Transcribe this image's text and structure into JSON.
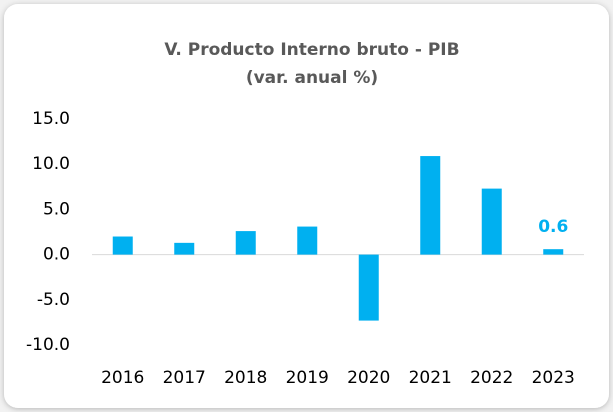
{
  "chart_data": {
    "type": "bar",
    "title": "V. Producto Interno bruto - PIB",
    "subtitle": "(var. anual %)",
    "categories": [
      "2016",
      "2017",
      "2018",
      "2019",
      "2020",
      "2021",
      "2022",
      "2023"
    ],
    "values": [
      2.0,
      1.3,
      2.6,
      3.1,
      -7.3,
      10.9,
      7.3,
      0.6
    ],
    "value_labels": [
      null,
      null,
      null,
      null,
      null,
      null,
      null,
      "0.6"
    ],
    "color": "#00b0f0",
    "ylim": [
      -10,
      15
    ],
    "yticks": [
      {
        "value": -10,
        "label": "-10.0"
      },
      {
        "value": -5,
        "label": "-5.0"
      },
      {
        "value": 0,
        "label": "0.0"
      },
      {
        "value": 5,
        "label": "5.0"
      },
      {
        "value": 10,
        "label": "10.0"
      },
      {
        "value": 15,
        "label": "15.0"
      }
    ],
    "grid": false
  }
}
